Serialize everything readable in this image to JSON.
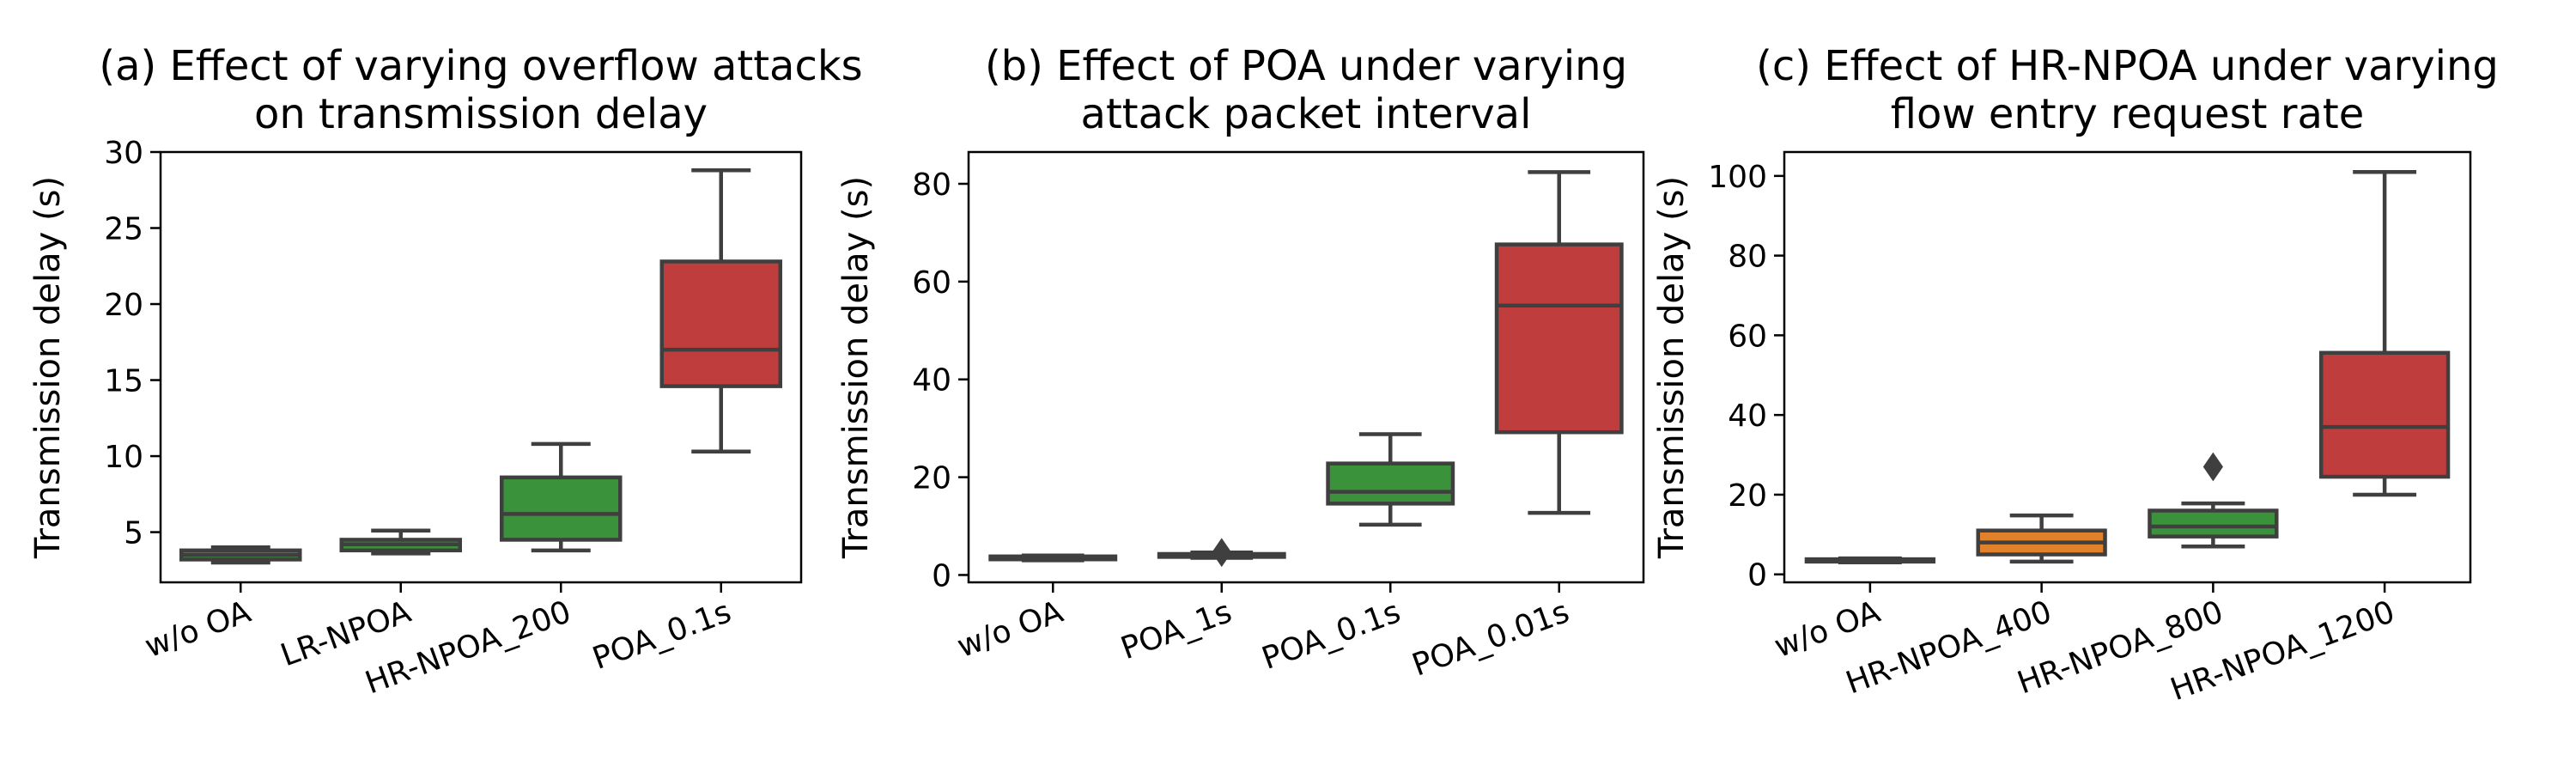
{
  "chart_data": [
    {
      "type": "box",
      "title_lines": [
        "(a) Effect of varying overflow attacks",
        "on transmission delay"
      ],
      "xlabel": "",
      "ylabel": "Transmission delay (s)",
      "ylim": [
        1.7,
        30
      ],
      "yticks": [
        5,
        10,
        15,
        20,
        25,
        30
      ],
      "grid": false,
      "categories": [
        "w/o OA",
        "LR-NPOA",
        "HR-NPOA_200",
        "POA_0.1s"
      ],
      "boxes": [
        {
          "category": "w/o OA",
          "whisker_low": 3.0,
          "q1": 3.2,
          "median": 3.5,
          "q3": 3.8,
          "whisker_high": 4.0,
          "outliers": [],
          "color": "#3a923a"
        },
        {
          "category": "LR-NPOA",
          "whisker_low": 3.6,
          "q1": 3.8,
          "median": 4.2,
          "q3": 4.5,
          "whisker_high": 5.1,
          "outliers": [],
          "color": "#3a923a"
        },
        {
          "category": "HR-NPOA_200",
          "whisker_low": 3.8,
          "q1": 4.5,
          "median": 6.2,
          "q3": 8.6,
          "whisker_high": 10.8,
          "outliers": [],
          "color": "#3a923a"
        },
        {
          "category": "POA_0.1s",
          "whisker_low": 10.3,
          "q1": 14.6,
          "median": 17.0,
          "q3": 22.8,
          "whisker_high": 28.8,
          "outliers": [],
          "color": "#c03d3e"
        }
      ]
    },
    {
      "type": "box",
      "title_lines": [
        "(b) Effect of POA under varying",
        "attack packet interval"
      ],
      "xlabel": "",
      "ylabel": "Transmission delay (s)",
      "ylim": [
        -1.5,
        86.5
      ],
      "yticks": [
        0,
        20,
        40,
        60,
        80
      ],
      "grid": false,
      "categories": [
        "w/o OA",
        "POA_1s",
        "POA_0.1s",
        "POA_0.01s"
      ],
      "boxes": [
        {
          "category": "w/o OA",
          "whisker_low": 3.0,
          "q1": 3.2,
          "median": 3.5,
          "q3": 3.8,
          "whisker_high": 4.0,
          "outliers": [],
          "color": "#3a923a"
        },
        {
          "category": "POA_1s",
          "whisker_low": 3.5,
          "q1": 3.7,
          "median": 4.0,
          "q3": 4.3,
          "whisker_high": 4.6,
          "outliers": [
            4.6
          ],
          "color": "#3a923a"
        },
        {
          "category": "POA_0.1s",
          "whisker_low": 10.3,
          "q1": 14.6,
          "median": 17.0,
          "q3": 22.8,
          "whisker_high": 28.8,
          "outliers": [],
          "color": "#3a923a"
        },
        {
          "category": "POA_0.01s",
          "whisker_low": 12.7,
          "q1": 29.2,
          "median": 55.1,
          "q3": 67.6,
          "whisker_high": 82.4,
          "outliers": [],
          "color": "#c03d3e"
        }
      ]
    },
    {
      "type": "box",
      "title_lines": [
        "(c) Effect of HR-NPOA under varying",
        "flow entry request rate"
      ],
      "xlabel": "",
      "ylabel": "Transmission delay (s)",
      "ylim": [
        -2,
        106
      ],
      "yticks": [
        0,
        20,
        40,
        60,
        80,
        100
      ],
      "grid": false,
      "categories": [
        "w/o OA",
        "HR-NPOA_400",
        "HR-NPOA_800",
        "HR-NPOA_1200"
      ],
      "boxes": [
        {
          "category": "w/o OA",
          "whisker_low": 3.0,
          "q1": 3.2,
          "median": 3.5,
          "q3": 3.8,
          "whisker_high": 4.0,
          "outliers": [],
          "color": "#3a923a"
        },
        {
          "category": "HR-NPOA_400",
          "whisker_low": 3.2,
          "q1": 5.0,
          "median": 8.0,
          "q3": 11.0,
          "whisker_high": 14.8,
          "outliers": [],
          "color": "#e1812c"
        },
        {
          "category": "HR-NPOA_800",
          "whisker_low": 7.0,
          "q1": 9.5,
          "median": 12.0,
          "q3": 16.0,
          "whisker_high": 17.8,
          "outliers": [
            27.0
          ],
          "color": "#3a923a"
        },
        {
          "category": "HR-NPOA_1200",
          "whisker_low": 20.0,
          "q1": 24.5,
          "median": 37.0,
          "q3": 55.6,
          "whisker_high": 101.0,
          "outliers": [],
          "color": "#c03d3e"
        }
      ]
    }
  ]
}
